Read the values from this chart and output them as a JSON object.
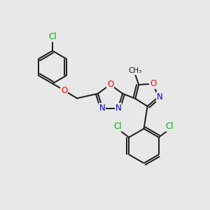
{
  "background_color": "#e8e8e8",
  "bond_color": "#1a1a1a",
  "atom_colors": {
    "O": "#ff0000",
    "N": "#0000cc",
    "Cl": "#00aa00",
    "C": "#1a1a1a"
  },
  "bond_width": 1.4,
  "font_size_atom": 8.5
}
